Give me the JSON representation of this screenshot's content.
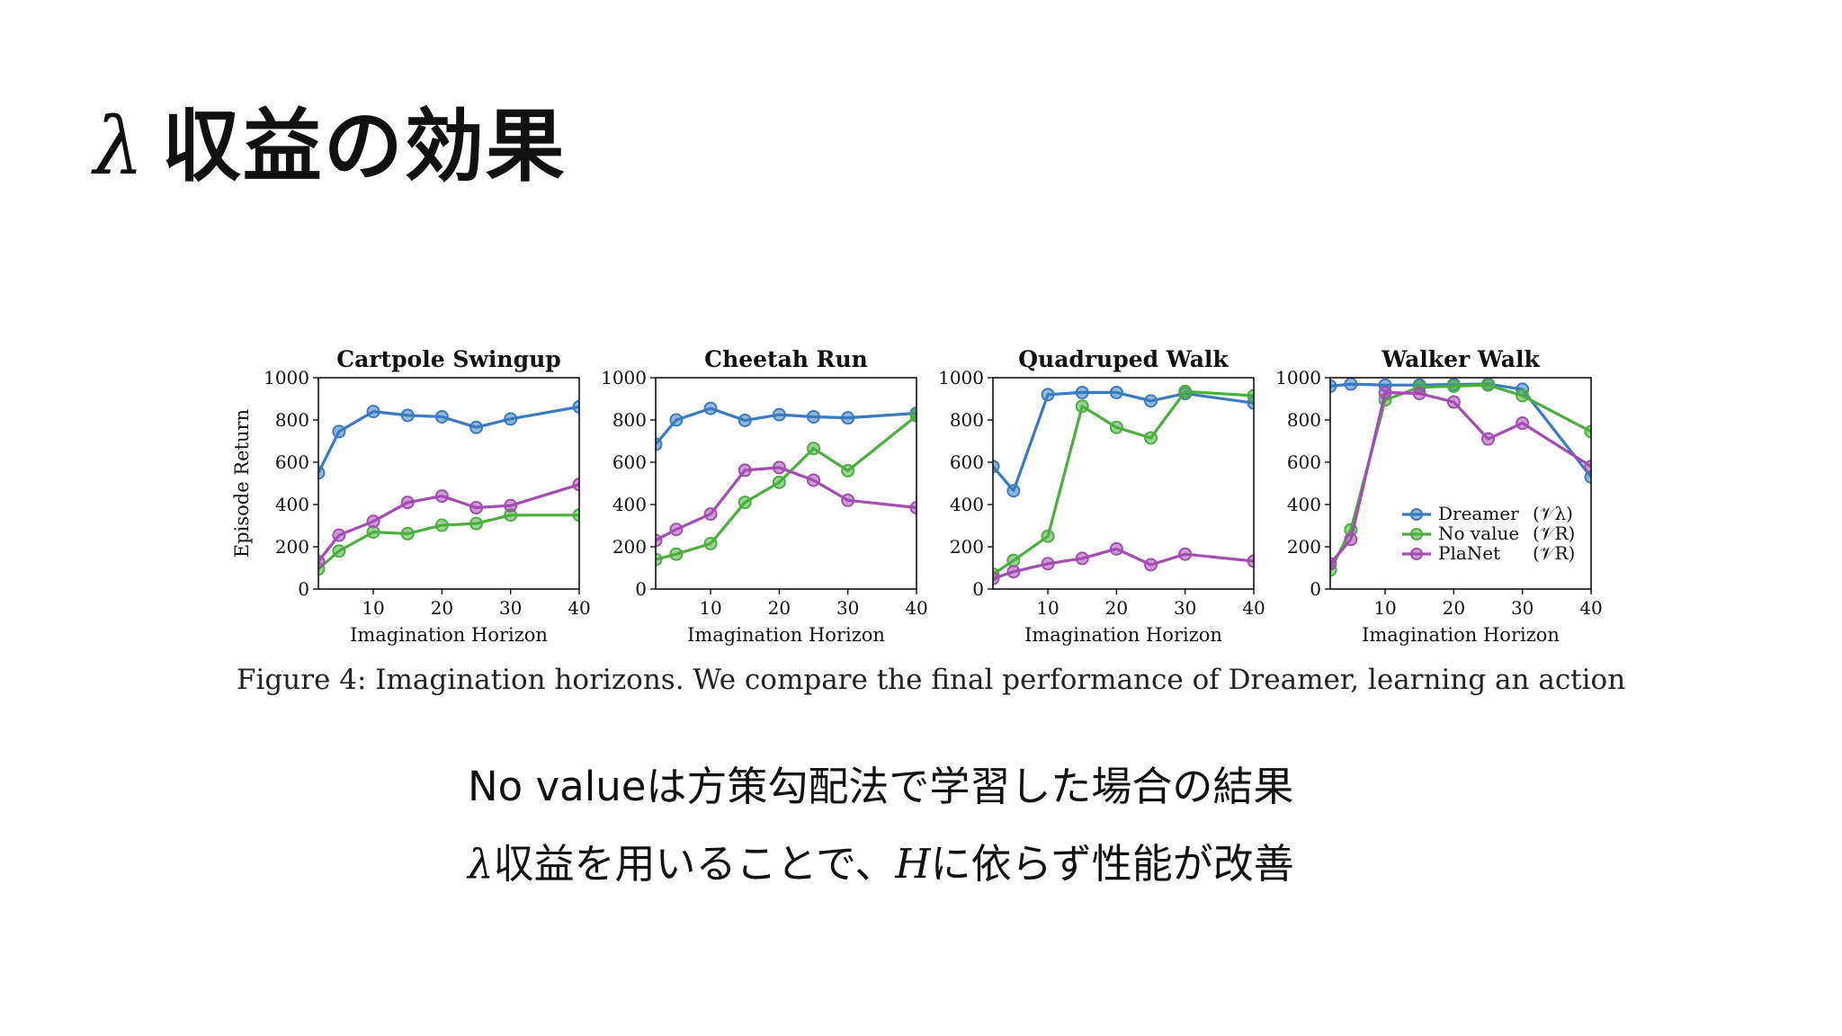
{
  "slide": {
    "title_symbol": "λ",
    "title_text": "収益の効果",
    "caption": "Figure 4: Imagination horizons. We compare the final performance of Dreamer, learning an action",
    "note1": "No valueは方策勾配法で学習した場合の結果",
    "note2_symbol": "λ",
    "note2_part1": "収益を用いることで、",
    "note2_var": "H",
    "note2_part2": "に依らず性能が改善"
  },
  "colors": {
    "dreamer": "#3a7bbf",
    "novalue": "#4cae3f",
    "planet": "#a44cb2",
    "axis": "#111111"
  },
  "legend": [
    {
      "label": "Dreamer",
      "target": "(𝒱λ)",
      "series": "dreamer"
    },
    {
      "label": "No value",
      "target": "(𝒱R)",
      "series": "novalue"
    },
    {
      "label": "PlaNet",
      "target": "(𝒱R)",
      "series": "planet"
    }
  ],
  "chart_data": [
    {
      "type": "line",
      "title": "Cartpole Swingup",
      "xlabel": "Imagination Horizon",
      "ylabel": "Episode Return",
      "xlim": [
        2,
        40
      ],
      "ylim": [
        0,
        1000
      ],
      "xticks": [
        10,
        20,
        30,
        40
      ],
      "yticks": [
        0,
        200,
        400,
        600,
        800,
        1000
      ],
      "x": [
        2,
        5,
        10,
        15,
        20,
        25,
        30,
        40
      ],
      "series": [
        {
          "name": "Dreamer",
          "key": "dreamer",
          "values": [
            550,
            745,
            840,
            822,
            815,
            765,
            805,
            862
          ]
        },
        {
          "name": "No value",
          "key": "novalue",
          "values": [
            95,
            180,
            270,
            262,
            302,
            310,
            350,
            350
          ]
        },
        {
          "name": "PlaNet",
          "key": "planet",
          "values": [
            130,
            255,
            320,
            410,
            440,
            385,
            395,
            495
          ]
        }
      ]
    },
    {
      "type": "line",
      "title": "Cheetah Run",
      "xlabel": "Imagination Horizon",
      "ylabel": "",
      "xlim": [
        2,
        40
      ],
      "ylim": [
        0,
        1000
      ],
      "xticks": [
        10,
        20,
        30,
        40
      ],
      "yticks": [
        0,
        200,
        400,
        600,
        800,
        1000
      ],
      "x": [
        2,
        5,
        10,
        15,
        20,
        25,
        30,
        40
      ],
      "series": [
        {
          "name": "Dreamer",
          "key": "dreamer",
          "values": [
            685,
            800,
            855,
            798,
            825,
            815,
            810,
            832
          ]
        },
        {
          "name": "No value",
          "key": "novalue",
          "values": [
            140,
            165,
            215,
            410,
            505,
            665,
            560,
            820
          ]
        },
        {
          "name": "PlaNet",
          "key": "planet",
          "values": [
            230,
            282,
            355,
            562,
            575,
            515,
            420,
            385
          ]
        }
      ]
    },
    {
      "type": "line",
      "title": "Quadruped Walk",
      "xlabel": "Imagination Horizon",
      "ylabel": "",
      "xlim": [
        2,
        40
      ],
      "ylim": [
        0,
        1000
      ],
      "xticks": [
        10,
        20,
        30,
        40
      ],
      "yticks": [
        0,
        200,
        400,
        600,
        800,
        1000
      ],
      "x": [
        2,
        5,
        10,
        15,
        20,
        25,
        30,
        40
      ],
      "series": [
        {
          "name": "Dreamer",
          "key": "dreamer",
          "values": [
            580,
            465,
            920,
            930,
            930,
            890,
            925,
            880
          ]
        },
        {
          "name": "No value",
          "key": "novalue",
          "values": [
            70,
            135,
            250,
            865,
            765,
            715,
            935,
            915
          ]
        },
        {
          "name": "PlaNet",
          "key": "planet",
          "values": [
            50,
            82,
            120,
            145,
            190,
            115,
            165,
            132
          ]
        }
      ]
    },
    {
      "type": "line",
      "title": "Walker Walk",
      "xlabel": "Imagination Horizon",
      "ylabel": "",
      "xlim": [
        2,
        40
      ],
      "ylim": [
        0,
        1000
      ],
      "xticks": [
        10,
        20,
        30,
        40
      ],
      "yticks": [
        0,
        200,
        400,
        600,
        800,
        1000
      ],
      "x": [
        2,
        5,
        10,
        15,
        20,
        25,
        30,
        40
      ],
      "series": [
        {
          "name": "Dreamer",
          "key": "dreamer",
          "values": [
            960,
            970,
            965,
            965,
            968,
            970,
            945,
            530
          ]
        },
        {
          "name": "No value",
          "key": "novalue",
          "values": [
            90,
            280,
            895,
            955,
            960,
            965,
            915,
            745
          ]
        },
        {
          "name": "PlaNet",
          "key": "planet",
          "values": [
            120,
            235,
            930,
            925,
            885,
            710,
            785,
            580
          ]
        }
      ]
    }
  ]
}
